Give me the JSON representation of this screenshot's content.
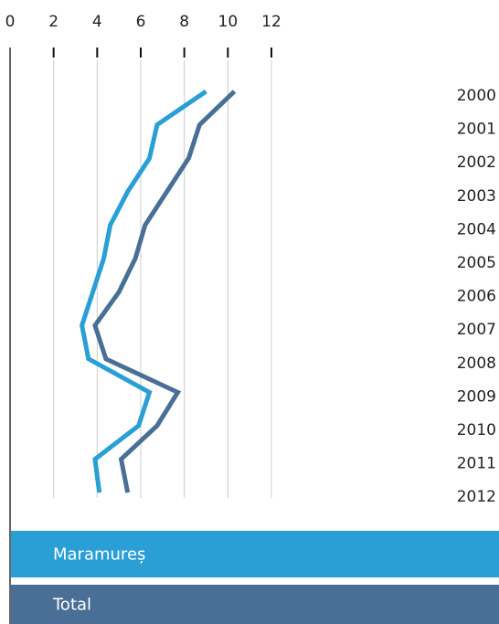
{
  "chart_data": {
    "type": "line",
    "orientation": "horizontal",
    "categories": [
      "2000",
      "2001",
      "2002",
      "2003",
      "2004",
      "2005",
      "2006",
      "2007",
      "2008",
      "2009",
      "2010",
      "2011",
      "2012"
    ],
    "series": [
      {
        "name": "Maramureș",
        "color": "#2a9fd6",
        "values": [
          9.0,
          6.75,
          6.4,
          5.4,
          4.6,
          4.3,
          3.8,
          3.3,
          3.6,
          6.4,
          5.9,
          3.9,
          4.1
        ]
      },
      {
        "name": "Total",
        "color": "#4a6f96",
        "values": [
          10.3,
          8.7,
          8.2,
          7.2,
          6.2,
          5.75,
          5.0,
          3.9,
          4.4,
          7.7,
          6.75,
          5.1,
          5.4
        ]
      }
    ],
    "xlim": [
      0,
      12
    ],
    "xticks": [
      0,
      2,
      4,
      6,
      8,
      10,
      12
    ],
    "grid": true
  }
}
